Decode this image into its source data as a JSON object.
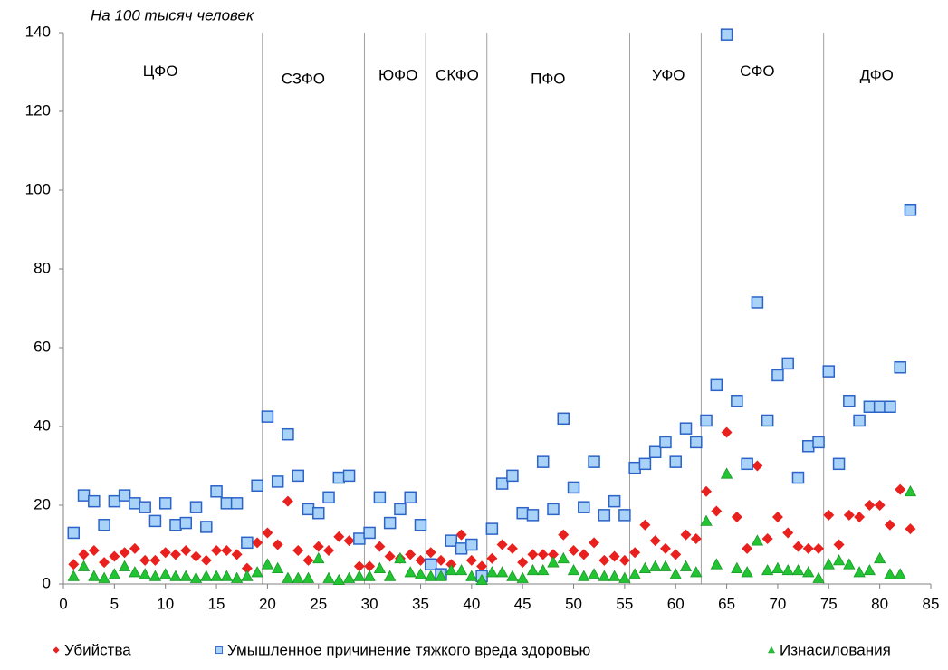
{
  "chart_data": {
    "type": "scatter",
    "subtitle": "На 100 тысяч человек",
    "xlim": [
      0,
      85
    ],
    "xticks": [
      0,
      5,
      10,
      15,
      20,
      25,
      30,
      35,
      40,
      45,
      50,
      55,
      60,
      65,
      70,
      75,
      80,
      85
    ],
    "ylim": [
      0,
      140
    ],
    "yticks": [
      0,
      20,
      40,
      60,
      80,
      100,
      120,
      140
    ],
    "x": [
      1,
      2,
      3,
      4,
      5,
      6,
      7,
      8,
      9,
      10,
      11,
      12,
      13,
      14,
      15,
      16,
      17,
      18,
      19,
      20,
      21,
      22,
      23,
      24,
      25,
      26,
      27,
      28,
      29,
      30,
      31,
      32,
      33,
      34,
      35,
      36,
      37,
      38,
      39,
      40,
      41,
      42,
      43,
      44,
      45,
      46,
      47,
      48,
      49,
      50,
      51,
      52,
      53,
      54,
      55,
      56,
      57,
      58,
      59,
      60,
      61,
      62,
      63,
      64,
      65,
      66,
      67,
      68,
      69,
      70,
      71,
      72,
      73,
      74,
      75,
      76,
      77,
      78,
      79,
      80,
      81,
      82,
      83
    ],
    "region_dividers": [
      19.5,
      29.5,
      35.5,
      41.5,
      55.5,
      62.5,
      74.5
    ],
    "regions": [
      {
        "label": "ЦФО",
        "x": 9.5,
        "y": 130
      },
      {
        "label": "СЗФО",
        "x": 23.5,
        "y": 128
      },
      {
        "label": "ЮФО",
        "x": 32.8,
        "y": 129
      },
      {
        "label": "СКФО",
        "x": 38.6,
        "y": 129
      },
      {
        "label": "ПФО",
        "x": 47.5,
        "y": 128
      },
      {
        "label": "УФО",
        "x": 59.3,
        "y": 129
      },
      {
        "label": "СФО",
        "x": 68,
        "y": 130
      },
      {
        "label": "ДФО",
        "x": 79.7,
        "y": 129
      }
    ],
    "series": [
      {
        "name": "Убийства",
        "color": "#e8201e",
        "marker": "diamond",
        "values": [
          5,
          7.5,
          8.5,
          5.5,
          7,
          8,
          9,
          6,
          6,
          8,
          7.5,
          8.5,
          7,
          6,
          8.5,
          8.5,
          7.5,
          4,
          10.5,
          13,
          10,
          21,
          8.5,
          6,
          9.5,
          8.5,
          12,
          11,
          4.5,
          4.5,
          9.5,
          7,
          6.5,
          7.5,
          6,
          8,
          6,
          5,
          12.5,
          6,
          4.5,
          6.5,
          10,
          9,
          5.5,
          7.5,
          7.5,
          7.5,
          12.5,
          8.5,
          7.5,
          10.5,
          6,
          7,
          6,
          8,
          15,
          11,
          9,
          7.5,
          12.5,
          11.5,
          23.5,
          18.5,
          38.5,
          17,
          9,
          30,
          11.5,
          17,
          13,
          9.5,
          9,
          9,
          17.5,
          10,
          17.5,
          17,
          20,
          20,
          15,
          24,
          14
        ]
      },
      {
        "name": "Умышленное причинение тяжкого вреда здоровью",
        "color": "#2b63c8",
        "marker": "square",
        "values": [
          13,
          22.5,
          21,
          15,
          21,
          22.5,
          20.5,
          19.5,
          16,
          20.5,
          15,
          15.5,
          19.5,
          14.5,
          23.5,
          20.5,
          20.5,
          10.5,
          25,
          42.5,
          26,
          38,
          27.5,
          19,
          18,
          22,
          27,
          27.5,
          11.5,
          13,
          22,
          15.5,
          19,
          22,
          15,
          5,
          2.5,
          11,
          9,
          10,
          2,
          14,
          25.5,
          27.5,
          18,
          17.5,
          31,
          19,
          42,
          24.5,
          19.5,
          31,
          17.5,
          21,
          17.5,
          29.5,
          30.5,
          33.5,
          36,
          31,
          39.5,
          36,
          41.5,
          50.5,
          139.5,
          46.5,
          30.5,
          71.5,
          41.5,
          53,
          56,
          27,
          35,
          36,
          54,
          30.5,
          46.5,
          41.5,
          45,
          45,
          45,
          55,
          95
        ]
      },
      {
        "name": "Изнасилования",
        "color": "#22c433",
        "marker": "triangle",
        "values": [
          2,
          4.5,
          2,
          1.5,
          2.5,
          4.5,
          3,
          2.5,
          2,
          2.5,
          2,
          2,
          1.5,
          2,
          2,
          2,
          1.5,
          2,
          3,
          5,
          4,
          1.5,
          1.5,
          1.5,
          6.5,
          1.5,
          1,
          1.5,
          2,
          2,
          4,
          2,
          6.5,
          3,
          2.5,
          2,
          2,
          3.5,
          3.5,
          2,
          1,
          3,
          3,
          2,
          1.5,
          3.5,
          3.5,
          5.5,
          6.5,
          3.5,
          2,
          2.5,
          2,
          2,
          1.5,
          2.5,
          4,
          4.5,
          4.5,
          2.5,
          4.5,
          3,
          16,
          5,
          28,
          4,
          3,
          11,
          3.5,
          4,
          3.5,
          3.5,
          3,
          1.5,
          5,
          6,
          5,
          3,
          3.5,
          6.5,
          2.5,
          2.5,
          23.5
        ]
      }
    ]
  }
}
